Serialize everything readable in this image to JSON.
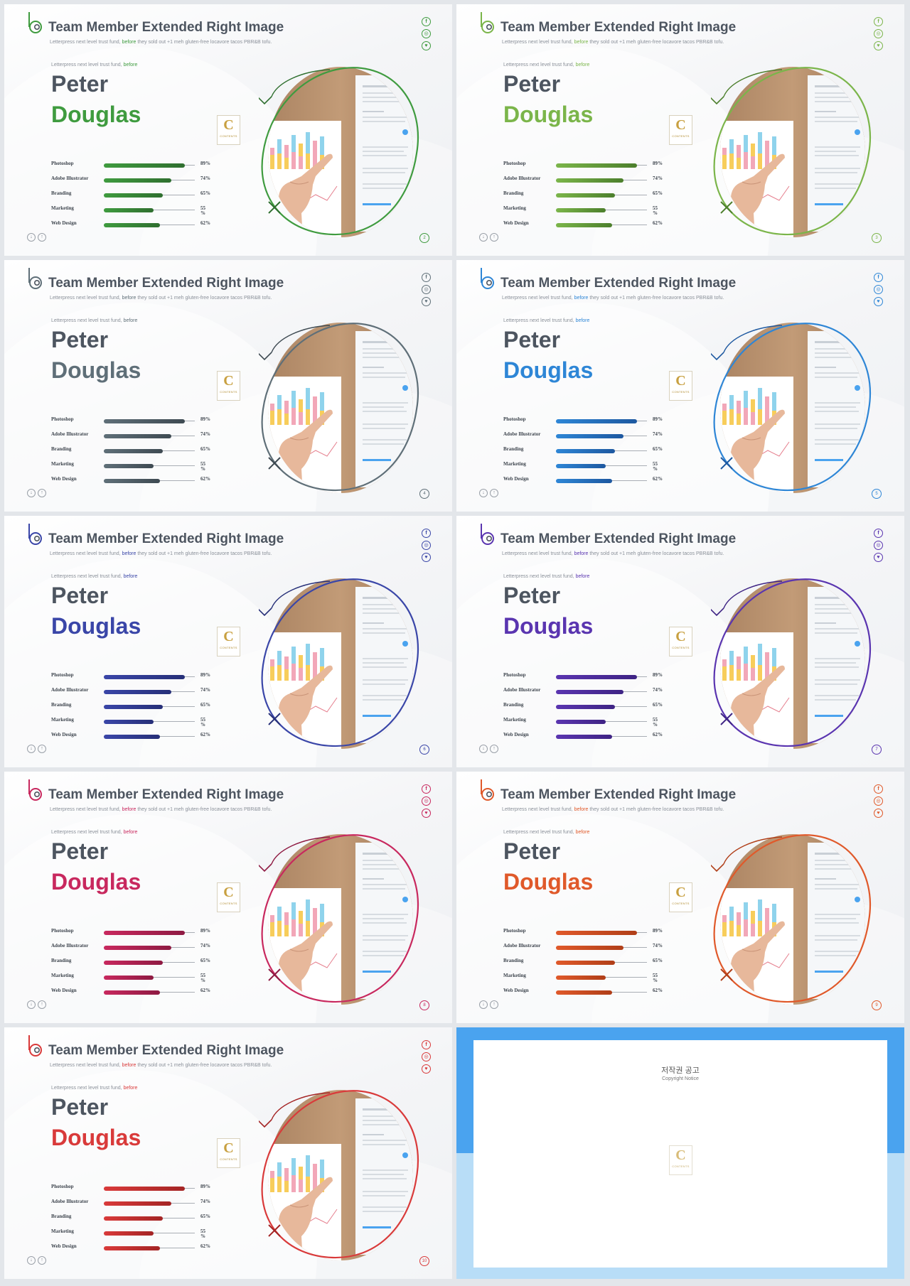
{
  "slide_common": {
    "title": "Team Member Extended Right Image",
    "subtitle_before": "Letterpress next level trust fund, ",
    "subtitle_highlight": "before",
    "subtitle_after": " they sold out +1 meh gluten-free locavore tacos PBR&B tofu.",
    "eyebrow_before": "Letterpress next level trust fund, ",
    "eyebrow_highlight": "before",
    "first_name": "Peter",
    "last_name": "Douglas",
    "badge_letter": "C",
    "badge_text": "CONTENTS",
    "nav_down": "↓",
    "nav_up": "↑",
    "social_icons": [
      "facebook-icon",
      "instagram-icon",
      "twitter-icon"
    ],
    "skills": [
      {
        "label": "Photoshop",
        "pct_text": "89%",
        "value": 89
      },
      {
        "label": "Adobe Illustrator",
        "pct_text": "74%",
        "value": 74
      },
      {
        "label": "Branding",
        "pct_text": "65%",
        "value": 65
      },
      {
        "label": "Marketing",
        "pct_text": "55\n%",
        "value": 55
      },
      {
        "label": "Web Design",
        "pct_text": "62%",
        "value": 62
      }
    ]
  },
  "slides": [
    {
      "page": "2",
      "accent": "#3f9b3f",
      "dark": "#2f6f2f"
    },
    {
      "page": "3",
      "accent": "#7bb54a",
      "dark": "#4c7f2c"
    },
    {
      "page": "4",
      "accent": "#5f6f78",
      "dark": "#3e4a52"
    },
    {
      "page": "5",
      "accent": "#2e86d6",
      "dark": "#1d58a0"
    },
    {
      "page": "6",
      "accent": "#3a46a8",
      "dark": "#262f78"
    },
    {
      "page": "7",
      "accent": "#5a35b0",
      "dark": "#3e2384"
    },
    {
      "page": "8",
      "accent": "#c8285e",
      "dark": "#8e1a42"
    },
    {
      "page": "9",
      "accent": "#e0592a",
      "dark": "#b03e18"
    },
    {
      "page": "10",
      "accent": "#d93a3a",
      "dark": "#a42424"
    }
  ],
  "notice": {
    "title": "저작권 공고",
    "subtitle": "Copyright Notice",
    "paragraphs": [
      "",
      "",
      "",
      "",
      ""
    ]
  }
}
